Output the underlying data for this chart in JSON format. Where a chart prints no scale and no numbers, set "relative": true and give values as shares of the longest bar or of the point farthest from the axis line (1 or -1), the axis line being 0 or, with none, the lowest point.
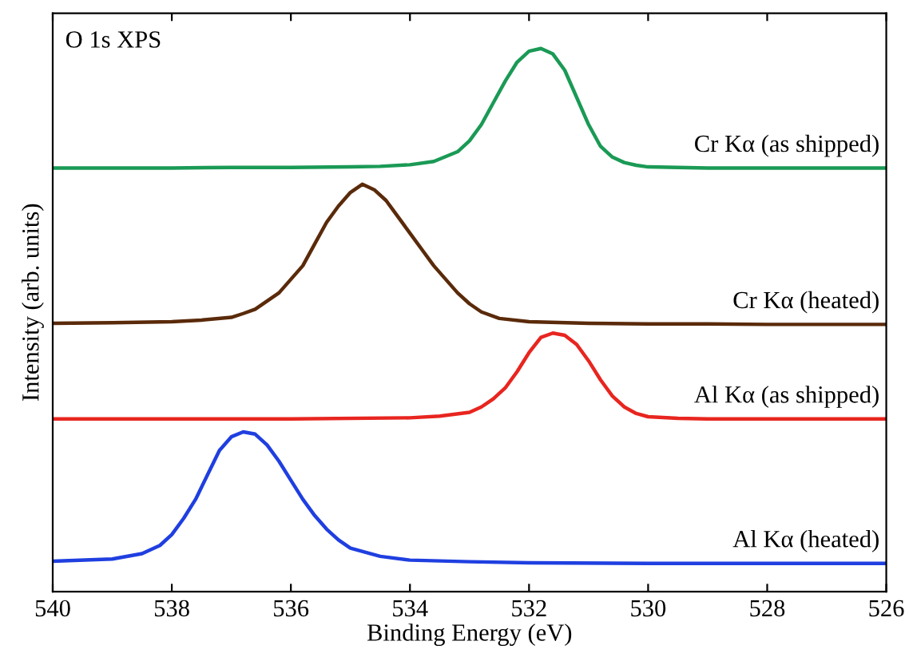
{
  "chart_data": {
    "type": "line",
    "relative": true,
    "xlabel": "Binding Energy (eV)",
    "ylabel": "Intensity (arb. units)",
    "annotations": [
      "O 1s XPS"
    ],
    "xlim": [
      540,
      526
    ],
    "xticks": [
      540,
      538,
      536,
      534,
      532,
      530,
      528,
      526
    ],
    "grid": false,
    "legend": false,
    "tick_labels": "x",
    "marker": "none",
    "line_style": "solid",
    "series": [
      {
        "name": "Cr Kα (as shipped)",
        "color": "#1a9a55",
        "x": [
          540,
          539,
          538,
          537,
          536,
          535,
          534.5,
          534,
          533.6,
          533.2,
          533.0,
          532.8,
          532.6,
          532.4,
          532.2,
          532.0,
          531.8,
          531.6,
          531.4,
          531.2,
          531.0,
          530.8,
          530.6,
          530.4,
          530.2,
          530,
          529.5,
          529,
          528,
          527,
          526
        ],
        "values": [
          0.78,
          0.78,
          0.78,
          0.781,
          0.781,
          0.782,
          0.783,
          0.786,
          0.792,
          0.81,
          0.83,
          0.86,
          0.9,
          0.94,
          0.975,
          0.995,
          1.0,
          0.99,
          0.96,
          0.91,
          0.86,
          0.82,
          0.8,
          0.79,
          0.785,
          0.782,
          0.781,
          0.78,
          0.78,
          0.78,
          0.78
        ]
      },
      {
        "name": "Cr Kα (heated)",
        "color": "#5a2a0a",
        "x": [
          540,
          539,
          538,
          537.5,
          537,
          536.8,
          536.6,
          536.4,
          536.2,
          536.0,
          535.8,
          535.6,
          535.4,
          535.2,
          535.0,
          534.8,
          534.6,
          534.4,
          534.2,
          534.0,
          533.8,
          533.6,
          533.4,
          533.2,
          533.0,
          532.8,
          532.5,
          532,
          531,
          530,
          529,
          528,
          527,
          526
        ],
        "values": [
          0.494,
          0.495,
          0.497,
          0.5,
          0.505,
          0.512,
          0.52,
          0.535,
          0.55,
          0.575,
          0.6,
          0.64,
          0.68,
          0.71,
          0.735,
          0.75,
          0.74,
          0.72,
          0.69,
          0.66,
          0.63,
          0.6,
          0.575,
          0.55,
          0.53,
          0.515,
          0.503,
          0.497,
          0.494,
          0.493,
          0.493,
          0.492,
          0.492,
          0.492
        ]
      },
      {
        "name": "Al Kα (as shipped)",
        "color": "#e8251f",
        "x": [
          540,
          538,
          536,
          534,
          533.5,
          533,
          532.8,
          532.6,
          532.4,
          532.2,
          532.0,
          531.8,
          531.6,
          531.4,
          531.2,
          531.0,
          530.8,
          530.6,
          530.4,
          530.2,
          530,
          529.5,
          529,
          528,
          526
        ],
        "values": [
          0.318,
          0.318,
          0.318,
          0.32,
          0.323,
          0.33,
          0.34,
          0.355,
          0.375,
          0.405,
          0.44,
          0.468,
          0.476,
          0.472,
          0.455,
          0.425,
          0.39,
          0.36,
          0.34,
          0.328,
          0.322,
          0.319,
          0.318,
          0.318,
          0.318
        ]
      },
      {
        "name": "Al Kα (heated)",
        "color": "#1f3fe0",
        "x": [
          540,
          539,
          538.5,
          538.2,
          538.0,
          537.8,
          537.6,
          537.4,
          537.2,
          537.0,
          536.8,
          536.6,
          536.4,
          536.2,
          536.0,
          535.8,
          535.6,
          535.4,
          535.2,
          535.0,
          534.5,
          534,
          533,
          532,
          530,
          528,
          526
        ],
        "values": [
          0.056,
          0.06,
          0.07,
          0.085,
          0.105,
          0.135,
          0.17,
          0.215,
          0.26,
          0.285,
          0.294,
          0.29,
          0.27,
          0.24,
          0.205,
          0.17,
          0.14,
          0.115,
          0.095,
          0.08,
          0.065,
          0.058,
          0.055,
          0.053,
          0.052,
          0.052,
          0.052
        ]
      }
    ]
  }
}
